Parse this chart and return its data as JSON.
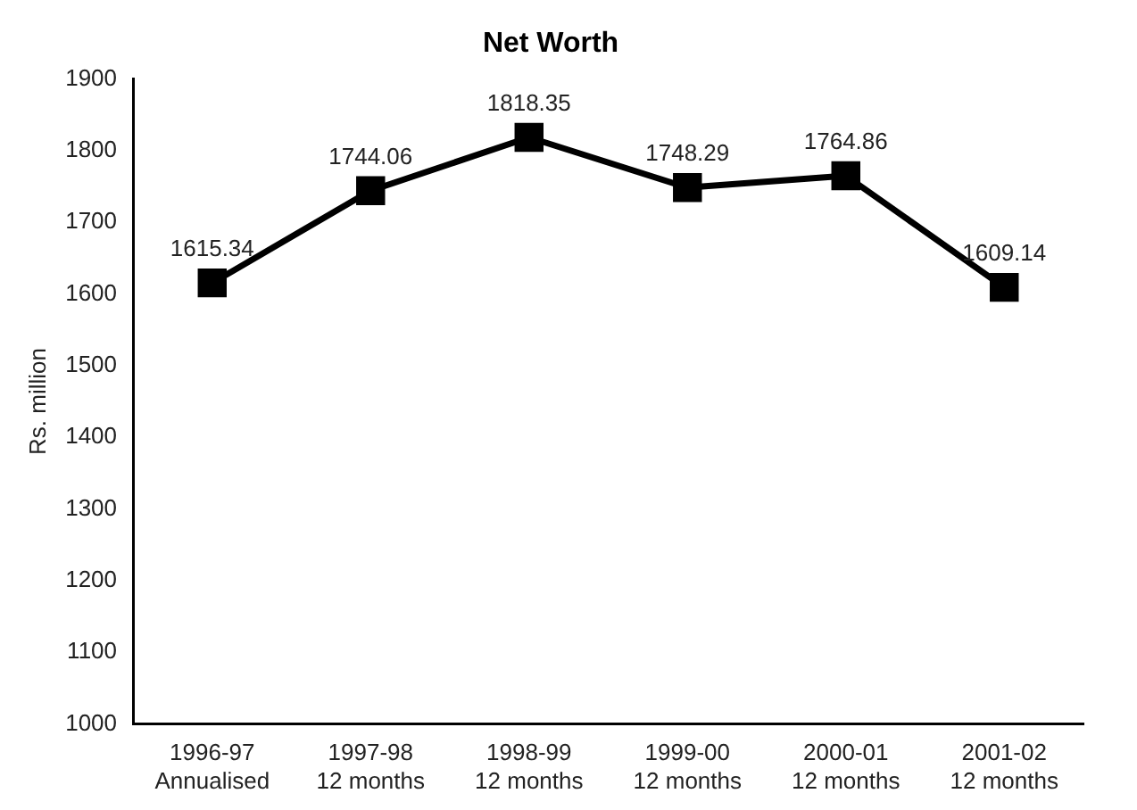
{
  "chart_data": {
    "type": "line",
    "title": "Net Worth",
    "ylabel": "Rs. million",
    "categories": [
      "1996-97\nAnnualised",
      "1997-98\n12 months",
      "1998-99\n12 months",
      "1999-00\n12 months",
      "2000-01\n12 months",
      "2001-02\n12 months"
    ],
    "series": [
      {
        "color": "#000000",
        "values": [
          1615.34,
          1744.06,
          1818.35,
          1748.29,
          1764.86,
          1609.14
        ]
      }
    ],
    "ylim": [
      1000,
      1900
    ],
    "yticks": [
      1000,
      1100,
      1200,
      1300,
      1400,
      1500,
      1600,
      1700,
      1800,
      1900
    ],
    "grid": false,
    "legend": false,
    "marker": "square",
    "line_style": "solid",
    "data_labels": true
  }
}
